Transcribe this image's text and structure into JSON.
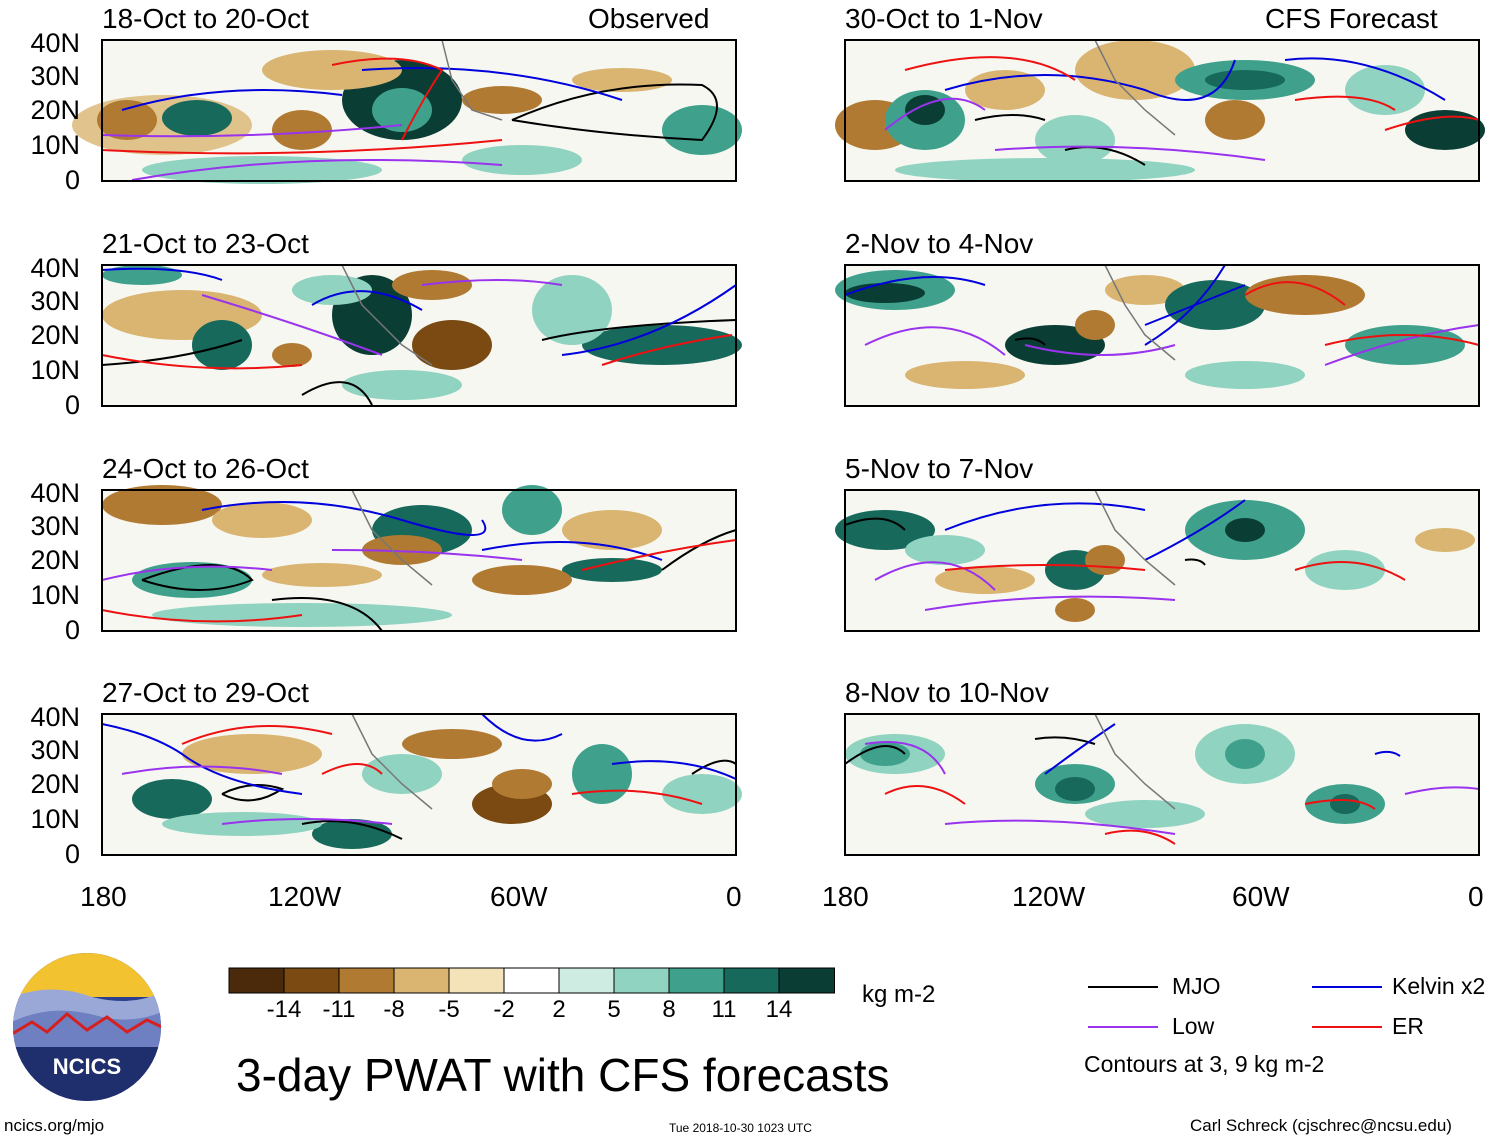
{
  "panels_left": [
    {
      "title": "18-Oct to 20-Oct",
      "tag": "Observed"
    },
    {
      "title": "21-Oct to 23-Oct",
      "tag": ""
    },
    {
      "title": "24-Oct to 26-Oct",
      "tag": ""
    },
    {
      "title": "27-Oct to 29-Oct",
      "tag": ""
    }
  ],
  "panels_right": [
    {
      "title": "30-Oct to 1-Nov",
      "tag": "CFS Forecast"
    },
    {
      "title": "2-Nov to 4-Nov",
      "tag": ""
    },
    {
      "title": "5-Nov to 7-Nov",
      "tag": ""
    },
    {
      "title": "8-Nov to 10-Nov",
      "tag": ""
    }
  ],
  "lat_labels": [
    "40N",
    "30N",
    "20N",
    "10N",
    "0"
  ],
  "lon_labels": [
    "180",
    "120W",
    "60W",
    "0"
  ],
  "colorbar": {
    "colors": [
      "#4a2a0a",
      "#7a4a12",
      "#b07a33",
      "#d9b571",
      "#f4e3b8",
      "#ffffff",
      "#cfece3",
      "#8fd3c0",
      "#3fa18c",
      "#17695b",
      "#0a3d33"
    ],
    "ticks": [
      "-14",
      "-11",
      "-8",
      "-5",
      "-2",
      "2",
      "5",
      "8",
      "11",
      "14"
    ],
    "units": "kg m-2"
  },
  "title": "3-day PWAT with CFS forecasts",
  "logo_text": "NCICS",
  "legend": {
    "items": [
      {
        "label": "MJO",
        "color": "#000000"
      },
      {
        "label": "Kelvin x2",
        "color": "#0000dd"
      },
      {
        "label": "Low",
        "color": "#9933ee"
      },
      {
        "label": "ER",
        "color": "#ee1111"
      }
    ],
    "note": "Contours at 3, 9 kg m-2"
  },
  "footer": {
    "website": "ncics.org/mjo",
    "timestamp": "Tue 2018-10-30 1023 UTC",
    "credit": "Carl Schreck (cjschrec@ncsu.edu)"
  }
}
